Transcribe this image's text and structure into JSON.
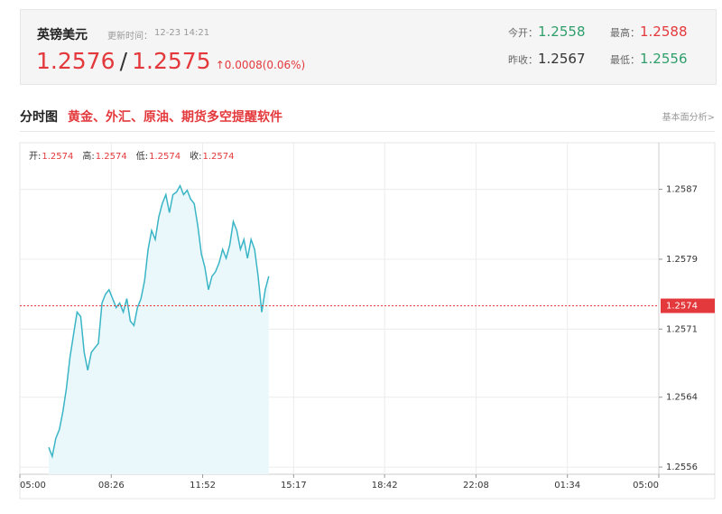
{
  "quote": {
    "name": "英镑美元",
    "update_label": "更新时间：",
    "update_time": "12-23 14:21",
    "bid": "1.2576",
    "separator": "/",
    "ask": "1.2575",
    "change": "0.0008(0.06%)",
    "stats": [
      {
        "label": "今开：",
        "value": "1.2558"
      },
      {
        "label": "最高：",
        "value": "1.2588"
      },
      {
        "label": "昨收：",
        "value": "1.2567"
      },
      {
        "label": "最低：",
        "value": "1.2556"
      }
    ]
  },
  "section": {
    "title": "分时图",
    "promo": "黄金、外汇、原油、期货多空提醒软件",
    "link": "基本面分析>"
  },
  "chart_data": {
    "type": "line",
    "ohlc": [
      {
        "name": "开:",
        "value": "1.2574"
      },
      {
        "name": "高:",
        "value": "1.2574"
      },
      {
        "name": "低:",
        "value": "1.2574"
      },
      {
        "name": "收:",
        "value": "1.2574"
      }
    ],
    "x": [
      365,
      373,
      381,
      389,
      397,
      405,
      413,
      421,
      429,
      437,
      445,
      453,
      461,
      469,
      477,
      485,
      493,
      501,
      509,
      517,
      525,
      533,
      541,
      549,
      557,
      565,
      573,
      581,
      589,
      597,
      605,
      613,
      621,
      629,
      637,
      645,
      653,
      661,
      669,
      677,
      685,
      693,
      701,
      709,
      717,
      725,
      733,
      741,
      749,
      757,
      765,
      773,
      781,
      789,
      797,
      805,
      813,
      821,
      829,
      837,
      845,
      853,
      861
    ],
    "series": [
      {
        "color": "#3ab5c6",
        "fill": "#eaf8fb",
        "values": [
          1.25582,
          1.25572,
          1.25592,
          1.25602,
          1.25622,
          1.25648,
          1.25683,
          1.25708,
          1.25733,
          1.25728,
          1.25688,
          1.25668,
          1.25688,
          1.25693,
          1.25698,
          1.25743,
          1.25753,
          1.25758,
          1.25748,
          1.25738,
          1.25743,
          1.25733,
          1.25748,
          1.25723,
          1.25718,
          1.25738,
          1.25748,
          1.25768,
          1.25803,
          1.25824,
          1.25814,
          1.25839,
          1.25854,
          1.25864,
          1.25844,
          1.25864,
          1.25867,
          1.25874,
          1.25864,
          1.25869,
          1.25859,
          1.25854,
          1.25829,
          1.25798,
          1.25783,
          1.25758,
          1.25773,
          1.25778,
          1.25788,
          1.25803,
          1.25793,
          1.25808,
          1.25834,
          1.25824,
          1.25803,
          1.25814,
          1.25793,
          1.25814,
          1.25803,
          1.25773,
          1.25733,
          1.25758,
          1.25773
        ]
      }
    ],
    "ref_line": 1.2574,
    "ref_color": "#e4393c",
    "xlim": [
      300,
      1740
    ],
    "xticks": [
      {
        "value": 300,
        "label": "05:00"
      },
      {
        "value": 506,
        "label": "08:26"
      },
      {
        "value": 712,
        "label": "11:52"
      },
      {
        "value": 917,
        "label": "15:17"
      },
      {
        "value": 1122,
        "label": "18:42"
      },
      {
        "value": 1328,
        "label": "22:08"
      },
      {
        "value": 1534,
        "label": "01:34"
      },
      {
        "value": 1740,
        "label": "05:00"
      }
    ],
    "ylim": [
      1.25552,
      1.25922
    ],
    "yticks": [
      1.2556,
      {
        "value": 1.25638,
        "label": "1.2564"
      },
      {
        "value": 1.25714,
        "label": "1.2571"
      },
      {
        "value": 1.25792,
        "label": "1.2579"
      },
      1.2587
    ],
    "grid": true
  }
}
